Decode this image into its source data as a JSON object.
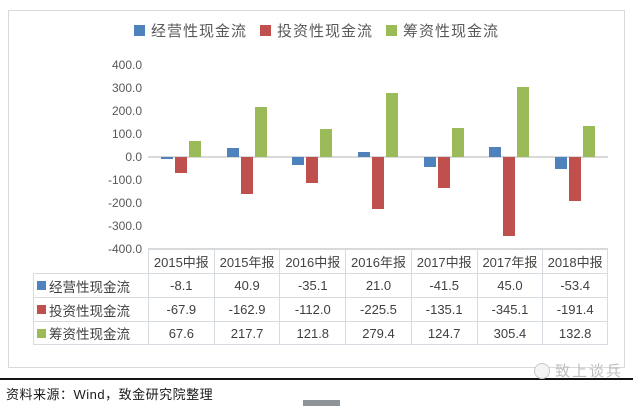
{
  "chart_data": {
    "type": "bar",
    "categories": [
      "2015中报",
      "2015年报",
      "2016中报",
      "2016年报",
      "2017中报",
      "2017年报",
      "2018中报"
    ],
    "series": [
      {
        "name": "经营性现金流",
        "color": "#4f81bd",
        "values": [
          -8.1,
          40.9,
          -35.1,
          21.0,
          -41.5,
          45.0,
          -53.4
        ]
      },
      {
        "name": "投资性现金流",
        "color": "#c0504d",
        "values": [
          -67.9,
          -162.9,
          -112.0,
          -225.5,
          -135.1,
          -345.1,
          -191.4
        ]
      },
      {
        "name": "筹资性现金流",
        "color": "#9bbb59",
        "values": [
          67.6,
          217.7,
          121.8,
          279.4,
          124.7,
          305.4,
          132.8
        ]
      }
    ],
    "title": "",
    "xlabel": "",
    "ylabel": "",
    "ylim": [
      -400,
      400
    ],
    "ytick_step": 100,
    "yticks": [
      "400.0",
      "300.0",
      "200.0",
      "100.0",
      "0.0",
      "-100.0",
      "-200.0",
      "-300.0",
      "-400.0"
    ],
    "grid": false,
    "legend_position": "top",
    "data_table_shown": true
  },
  "footer": {
    "source": "资料来源：Wind，致金研究院整理"
  },
  "watermark": {
    "text": "致上谈兵"
  }
}
